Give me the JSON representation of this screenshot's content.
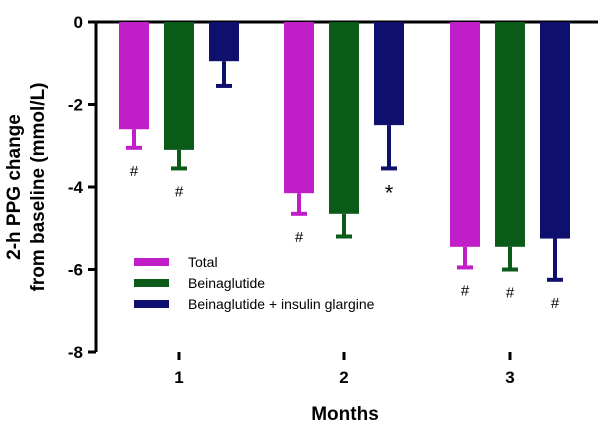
{
  "chart_data": {
    "type": "bar",
    "xlabel": "Months",
    "ylabel_line1": "2-h PPG  change",
    "ylabel_line2": "from baseline (mmol/L)",
    "categories": [
      "1",
      "2",
      "3"
    ],
    "ylim": [
      -8,
      0
    ],
    "yticks": [
      0,
      -2,
      -4,
      -6,
      -8
    ],
    "series": [
      {
        "name": "Total",
        "color": "#c01ec8",
        "values": [
          -2.6,
          -4.15,
          -5.45
        ],
        "errors": [
          0.45,
          0.5,
          0.5
        ],
        "annotations": [
          "#",
          "#",
          "#"
        ]
      },
      {
        "name": "Beinaglutide",
        "color": "#0a5a18",
        "values": [
          -3.1,
          -4.65,
          -5.45
        ],
        "errors": [
          0.45,
          0.55,
          0.55
        ],
        "annotations": [
          "#",
          "",
          "#"
        ]
      },
      {
        "name": "Beinaglutide + insulin glargine",
        "color": "#0f0f6e",
        "values": [
          -0.95,
          -2.5,
          -5.25
        ],
        "errors": [
          0.6,
          1.05,
          1.0
        ],
        "annotations": [
          "",
          "*",
          "#"
        ]
      }
    ],
    "legend_position": "bottom-left",
    "grid": false
  }
}
